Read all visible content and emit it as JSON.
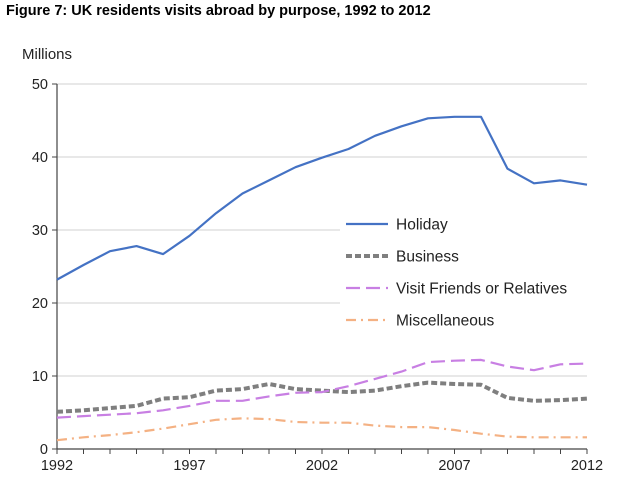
{
  "chart_data": {
    "type": "line",
    "title": "Figure 7: UK residents visits abroad by purpose, 1992 to 2012",
    "ylabel": "Millions",
    "xlabel": "",
    "x": [
      1992,
      1993,
      1994,
      1995,
      1996,
      1997,
      1998,
      1999,
      2000,
      2001,
      2002,
      2003,
      2004,
      2005,
      2006,
      2007,
      2008,
      2009,
      2010,
      2011,
      2012
    ],
    "xlim": [
      1992,
      2012
    ],
    "ylim": [
      0,
      50
    ],
    "x_ticks": [
      1992,
      1997,
      2002,
      2007,
      2012
    ],
    "y_ticks": [
      0,
      10,
      20,
      30,
      40,
      50
    ],
    "grid": "horizontal",
    "legend_position": "center-right",
    "series": [
      {
        "name": "Holiday",
        "color": "#4472C4",
        "style": "solid",
        "values": [
          23.2,
          25.2,
          27.1,
          27.8,
          26.7,
          29.2,
          32.3,
          35.0,
          36.8,
          38.6,
          39.9,
          41.1,
          42.9,
          44.2,
          45.3,
          45.5,
          45.5,
          38.4,
          36.4,
          36.8,
          36.2
        ]
      },
      {
        "name": "Business",
        "color": "#7F7F7F",
        "style": "dash",
        "values": [
          5.1,
          5.3,
          5.6,
          5.9,
          6.9,
          7.1,
          8.0,
          8.2,
          8.9,
          8.2,
          8.0,
          7.8,
          8.0,
          8.6,
          9.1,
          8.9,
          8.8,
          7.0,
          6.6,
          6.7,
          6.9
        ]
      },
      {
        "name": "Visit Friends or Relatives",
        "color": "#C87FE3",
        "style": "longdash",
        "values": [
          4.3,
          4.5,
          4.7,
          4.9,
          5.3,
          5.9,
          6.6,
          6.6,
          7.2,
          7.7,
          7.8,
          8.6,
          9.6,
          10.6,
          11.9,
          12.1,
          12.2,
          11.3,
          10.8,
          11.6,
          11.7
        ]
      },
      {
        "name": "Miscellaneous",
        "color": "#F4B183",
        "style": "dashdot",
        "values": [
          1.2,
          1.6,
          1.9,
          2.3,
          2.8,
          3.4,
          4.0,
          4.2,
          4.1,
          3.7,
          3.6,
          3.6,
          3.2,
          3.0,
          3.0,
          2.6,
          2.1,
          1.7,
          1.6,
          1.6,
          1.6
        ]
      }
    ]
  }
}
